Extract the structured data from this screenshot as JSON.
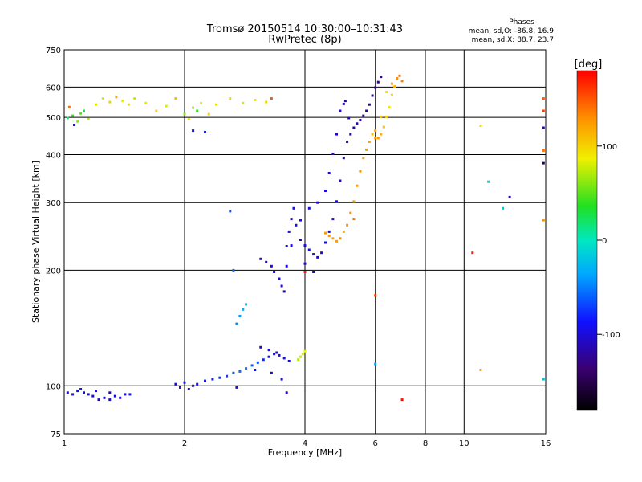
{
  "header": {
    "title_line1": "Tromsø 20150514 10:30:00–10:31:43",
    "title_line2": "RwPretec (8p)",
    "stats_title": "Phases",
    "stats_o": "mean, sd,O: -86.8, 16.9",
    "stats_x": "mean, sd,X: 88.7, 23.7"
  },
  "colorbar": {
    "unit": "[deg]",
    "ticks": [
      {
        "value": 100,
        "label": "100"
      },
      {
        "value": 0,
        "label": "0"
      },
      {
        "value": -100,
        "label": "-100"
      }
    ],
    "range": [
      -180,
      180
    ]
  },
  "chart_data": {
    "type": "scatter",
    "xlabel": "Frequency [MHz]",
    "ylabel": "Stationary phase Virtual Height [km]",
    "x_scale": "log",
    "y_scale": "log",
    "xlim": [
      1,
      16
    ],
    "ylim": [
      75,
      750
    ],
    "grid": true,
    "xticks": [
      {
        "value": 1,
        "label": "1"
      },
      {
        "value": 2,
        "label": "2"
      },
      {
        "value": 4,
        "label": "4"
      },
      {
        "value": 6,
        "label": "6"
      },
      {
        "value": 8,
        "label": "8"
      },
      {
        "value": 10,
        "label": "10"
      },
      {
        "value": 16,
        "label": "16"
      }
    ],
    "yticks": [
      {
        "value": 75,
        "label": "75"
      },
      {
        "value": 100,
        "label": "100"
      },
      {
        "value": 200,
        "label": "200"
      },
      {
        "value": 300,
        "label": "300"
      },
      {
        "value": 400,
        "label": "400"
      },
      {
        "value": 500,
        "label": "500"
      },
      {
        "value": 600,
        "label": "600"
      },
      {
        "value": 750,
        "label": "750"
      }
    ],
    "series": [
      {
        "color_by": "phase_deg",
        "points": [
          [
            1.02,
            96,
            -95
          ],
          [
            1.05,
            95,
            -100
          ],
          [
            1.08,
            97,
            -90
          ],
          [
            1.12,
            96,
            -105
          ],
          [
            1.15,
            95,
            -95
          ],
          [
            1.18,
            94,
            -100
          ],
          [
            1.22,
            92,
            -110
          ],
          [
            1.26,
            93,
            -100
          ],
          [
            1.3,
            92,
            -105
          ],
          [
            1.34,
            94,
            -95
          ],
          [
            1.38,
            93,
            -100
          ],
          [
            1.42,
            95,
            -90
          ],
          [
            1.46,
            95,
            -95
          ],
          [
            1.1,
            98,
            -85
          ],
          [
            1.2,
            97,
            -100
          ],
          [
            1.3,
            96,
            -110
          ],
          [
            1.9,
            101,
            -95
          ],
          [
            1.95,
            99,
            -100
          ],
          [
            2.0,
            102,
            -90
          ],
          [
            2.05,
            98,
            -110
          ],
          [
            2.1,
            100,
            -100
          ],
          [
            2.15,
            101,
            -95
          ],
          [
            2.25,
            103,
            -85
          ],
          [
            2.35,
            104,
            -80
          ],
          [
            2.45,
            105,
            -75
          ],
          [
            2.55,
            106,
            -70
          ],
          [
            2.65,
            108,
            -60
          ],
          [
            2.75,
            109,
            -55
          ],
          [
            2.85,
            111,
            -50
          ],
          [
            2.95,
            113,
            -60
          ],
          [
            3.05,
            115,
            -70
          ],
          [
            3.15,
            117,
            -80
          ],
          [
            3.25,
            119,
            -90
          ],
          [
            3.35,
            121,
            -95
          ],
          [
            3.45,
            120,
            -100
          ],
          [
            3.55,
            118,
            -95
          ],
          [
            3.65,
            116,
            -100
          ],
          [
            3.1,
            126,
            -110
          ],
          [
            3.25,
            124,
            -100
          ],
          [
            3.4,
            122,
            -105
          ],
          [
            3.0,
            110,
            -90
          ],
          [
            3.3,
            108,
            -95
          ],
          [
            3.5,
            104,
            -100
          ],
          [
            2.7,
            99,
            -95
          ],
          [
            3.6,
            96,
            -100
          ],
          [
            2.75,
            152,
            -40
          ],
          [
            2.8,
            158,
            -30
          ],
          [
            2.85,
            163,
            -25
          ],
          [
            2.7,
            145,
            -45
          ],
          [
            2.65,
            200,
            -55
          ],
          [
            2.6,
            285,
            -65
          ],
          [
            3.9,
            119,
            75
          ],
          [
            3.95,
            121,
            80
          ],
          [
            4.0,
            123,
            85
          ],
          [
            3.85,
            117,
            70
          ],
          [
            1.02,
            498,
            20
          ],
          [
            1.05,
            505,
            40
          ],
          [
            1.08,
            488,
            60
          ],
          [
            1.1,
            512,
            50
          ],
          [
            1.12,
            520,
            30
          ],
          [
            1.15,
            495,
            70
          ],
          [
            1.2,
            540,
            90
          ],
          [
            1.25,
            560,
            80
          ],
          [
            1.3,
            548,
            100
          ],
          [
            1.35,
            565,
            120
          ],
          [
            1.4,
            552,
            85
          ],
          [
            1.45,
            540,
            95
          ],
          [
            1.5,
            560,
            75
          ],
          [
            1.6,
            545,
            90
          ],
          [
            1.7,
            520,
            100
          ],
          [
            1.8,
            535,
            80
          ],
          [
            1.9,
            560,
            110
          ],
          [
            2.0,
            510,
            60
          ],
          [
            2.05,
            495,
            90
          ],
          [
            2.1,
            530,
            70
          ],
          [
            2.15,
            520,
            40
          ],
          [
            2.2,
            545,
            80
          ],
          [
            2.3,
            510,
            100
          ],
          [
            2.4,
            540,
            90
          ],
          [
            2.6,
            560,
            100
          ],
          [
            2.8,
            545,
            80
          ],
          [
            3.0,
            555,
            90
          ],
          [
            3.2,
            548,
            100
          ],
          [
            1.03,
            532,
            140
          ],
          [
            1.06,
            478,
            -100
          ],
          [
            2.1,
            462,
            -90
          ],
          [
            2.25,
            458,
            -80
          ],
          [
            3.3,
            560,
            150
          ],
          [
            3.1,
            214,
            -105
          ],
          [
            3.2,
            210,
            -110
          ],
          [
            3.3,
            205,
            -100
          ],
          [
            3.35,
            198,
            -95
          ],
          [
            3.45,
            190,
            -100
          ],
          [
            3.5,
            182,
            -105
          ],
          [
            3.55,
            176,
            -110
          ],
          [
            3.6,
            231,
            -100
          ],
          [
            3.65,
            252,
            -95
          ],
          [
            3.7,
            272,
            -110
          ],
          [
            3.75,
            290,
            -100
          ],
          [
            3.8,
            262,
            -105
          ],
          [
            3.9,
            240,
            -100
          ],
          [
            4.0,
            232,
            -95
          ],
          [
            4.1,
            226,
            -100
          ],
          [
            4.2,
            220,
            -105
          ],
          [
            4.3,
            216,
            -100
          ],
          [
            4.4,
            222,
            -95
          ],
          [
            4.5,
            236,
            -100
          ],
          [
            4.6,
            252,
            -105
          ],
          [
            4.7,
            272,
            -100
          ],
          [
            4.8,
            302,
            -95
          ],
          [
            4.9,
            342,
            -110
          ],
          [
            5.0,
            392,
            -115
          ],
          [
            5.1,
            432,
            -120
          ],
          [
            5.2,
            452,
            -115
          ],
          [
            5.3,
            470,
            -120
          ],
          [
            5.4,
            482,
            -115
          ],
          [
            5.5,
            492,
            -120
          ],
          [
            5.6,
            505,
            -115
          ],
          [
            5.7,
            520,
            -120
          ],
          [
            5.8,
            540,
            -125
          ],
          [
            5.9,
            570,
            -120
          ],
          [
            6.0,
            598,
            -125
          ],
          [
            6.1,
            618,
            -130
          ],
          [
            6.2,
            638,
            -125
          ],
          [
            5.0,
            542,
            -110
          ],
          [
            5.05,
            552,
            -115
          ],
          [
            4.9,
            520,
            -105
          ],
          [
            5.15,
            498,
            -110
          ],
          [
            4.6,
            358,
            -100
          ],
          [
            4.7,
            402,
            -105
          ],
          [
            4.8,
            452,
            -110
          ],
          [
            4.5,
            322,
            -100
          ],
          [
            3.9,
            270,
            -95
          ],
          [
            4.1,
            290,
            -100
          ],
          [
            4.3,
            300,
            -105
          ],
          [
            3.7,
            232,
            -100
          ],
          [
            3.6,
            205,
            -95
          ],
          [
            4.2,
            198,
            -100
          ],
          [
            4.0,
            208,
            -105
          ],
          [
            4.5,
            250,
            125
          ],
          [
            4.6,
            246,
            130
          ],
          [
            4.7,
            242,
            120
          ],
          [
            4.8,
            238,
            125
          ],
          [
            4.9,
            242,
            130
          ],
          [
            5.0,
            252,
            120
          ],
          [
            5.1,
            262,
            125
          ],
          [
            5.2,
            282,
            130
          ],
          [
            5.3,
            302,
            120
          ],
          [
            5.4,
            332,
            125
          ],
          [
            5.5,
            362,
            130
          ],
          [
            5.6,
            392,
            120
          ],
          [
            5.7,
            412,
            125
          ],
          [
            5.8,
            432,
            120
          ],
          [
            5.9,
            452,
            110
          ],
          [
            6.0,
            462,
            120
          ],
          [
            6.1,
            442,
            125
          ],
          [
            6.2,
            452,
            115
          ],
          [
            6.3,
            472,
            110
          ],
          [
            6.4,
            502,
            100
          ],
          [
            6.5,
            532,
            90
          ],
          [
            6.6,
            572,
            95
          ],
          [
            6.7,
            602,
            110
          ],
          [
            6.8,
            632,
            130
          ],
          [
            6.9,
            642,
            140
          ],
          [
            7.0,
            622,
            135
          ],
          [
            6.6,
            612,
            120
          ],
          [
            6.4,
            582,
            95
          ],
          [
            6.2,
            502,
            110
          ],
          [
            6.0,
            442,
            125
          ],
          [
            11.0,
            476,
            100
          ],
          [
            11.5,
            340,
            -10
          ],
          [
            12.5,
            290,
            -20
          ],
          [
            13.0,
            310,
            -110
          ],
          [
            15.8,
            560,
            150
          ],
          [
            15.8,
            520,
            160
          ],
          [
            15.8,
            470,
            -120
          ],
          [
            15.8,
            410,
            140
          ],
          [
            15.8,
            380,
            -150
          ],
          [
            15.8,
            270,
            130
          ],
          [
            15.8,
            104,
            -20
          ],
          [
            10.5,
            222,
            170
          ],
          [
            11.0,
            110,
            120
          ],
          [
            7.0,
            92,
            175
          ],
          [
            6.0,
            114,
            -40
          ],
          [
            6.0,
            172,
            160
          ],
          [
            4.0,
            198,
            170
          ],
          [
            5.3,
            272,
            140
          ]
        ]
      }
    ]
  }
}
